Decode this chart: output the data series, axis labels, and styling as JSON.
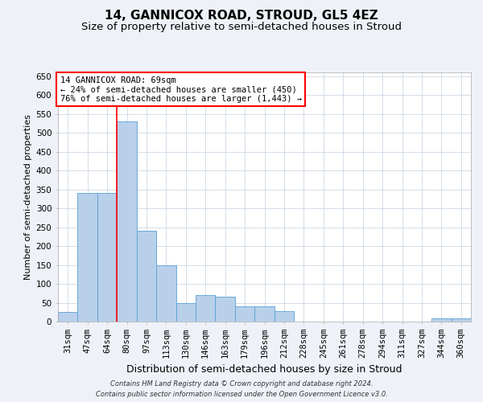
{
  "title1": "14, GANNICOX ROAD, STROUD, GL5 4EZ",
  "title2": "Size of property relative to semi-detached houses in Stroud",
  "xlabel": "Distribution of semi-detached houses by size in Stroud",
  "ylabel": "Number of semi-detached properties",
  "categories": [
    "31sqm",
    "47sqm",
    "64sqm",
    "80sqm",
    "97sqm",
    "113sqm",
    "130sqm",
    "146sqm",
    "163sqm",
    "179sqm",
    "196sqm",
    "212sqm",
    "228sqm",
    "245sqm",
    "261sqm",
    "278sqm",
    "294sqm",
    "311sqm",
    "327sqm",
    "344sqm",
    "360sqm"
  ],
  "values": [
    25,
    340,
    340,
    530,
    240,
    150,
    48,
    70,
    65,
    40,
    40,
    28,
    0,
    0,
    0,
    0,
    0,
    0,
    0,
    8,
    8
  ],
  "bar_color": "#b8d0ea",
  "bar_edge_color": "#5a9fd4",
  "red_line_x": 2.5,
  "annotation_title": "14 GANNICOX ROAD: 69sqm",
  "annotation_line1": "← 24% of semi-detached houses are smaller (450)",
  "annotation_line2": "76% of semi-detached houses are larger (1,443) →",
  "footer1": "Contains HM Land Registry data © Crown copyright and database right 2024.",
  "footer2": "Contains public sector information licensed under the Open Government Licence v3.0.",
  "ylim": [
    0,
    660
  ],
  "yticks": [
    0,
    50,
    100,
    150,
    200,
    250,
    300,
    350,
    400,
    450,
    500,
    550,
    600,
    650
  ],
  "bg_color": "#eef2f8",
  "plot_bg_color": "#ffffff",
  "grid_color": "#c5d0e0",
  "title1_fontsize": 11,
  "title2_fontsize": 9.5,
  "xlabel_fontsize": 9,
  "ylabel_fontsize": 8,
  "tick_fontsize": 7.5,
  "footer_fontsize": 6,
  "annot_fontsize": 7.5
}
